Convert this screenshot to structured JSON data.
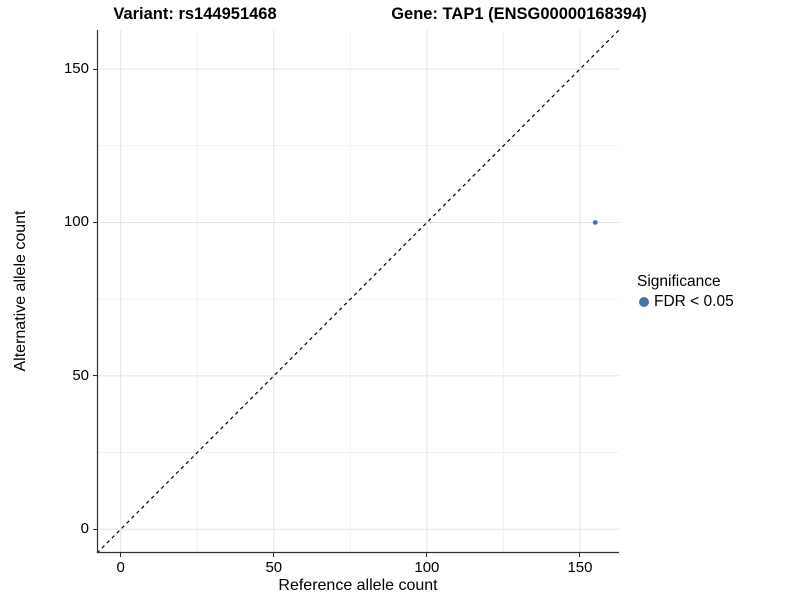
{
  "chart_data": {
    "type": "scatter",
    "title_left": "Variant: rs144951468",
    "title_right": "Gene: TAP1 (ENSG00000168394)",
    "xlabel": "Reference allele count",
    "ylabel": "Alternative allele count",
    "xlim": [
      -7.75,
      162.75
    ],
    "ylim": [
      -7.75,
      162.75
    ],
    "major_ticks": [
      0,
      50,
      100,
      150
    ],
    "minor_gridlines": [
      25,
      75,
      125
    ],
    "grid": "on",
    "points": [
      {
        "x": 155,
        "y": 100,
        "series": "FDR < 0.05"
      }
    ],
    "identity_line": {
      "style": "dashed",
      "from": -7.75,
      "to": 162.75
    },
    "legend": {
      "title": "Significance",
      "position": "right",
      "entries": [
        {
          "label": "FDR < 0.05",
          "color": "#4674ab"
        }
      ]
    },
    "colors": {
      "point": "#4674ab",
      "axis_line": "#2f2f2f",
      "grid_major": "#e4e4e4",
      "grid_minor": "#f1f1f1",
      "dashed_line": "#000000",
      "text": "#000000"
    }
  }
}
